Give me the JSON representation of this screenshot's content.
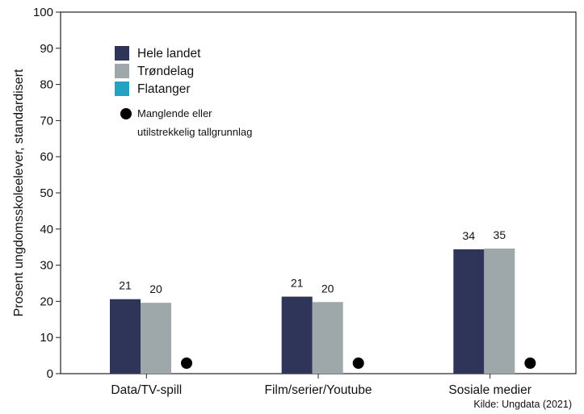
{
  "chart_data": {
    "type": "bar",
    "ylabel": "Prosent ungdomsskoleelever, standardisert",
    "ylim": [
      0,
      100
    ],
    "yticks": [
      0,
      10,
      20,
      30,
      40,
      50,
      60,
      70,
      80,
      90,
      100
    ],
    "grid": false,
    "legend_position": "top-left",
    "categories": [
      "Data/TV-spill",
      "Film/serier/Youtube",
      "Sosiale medier"
    ],
    "series": [
      {
        "name": "Hele landet",
        "color": "#2e3559",
        "values": [
          20.6,
          21.3,
          34.4
        ],
        "labels": [
          "21",
          "21",
          "34"
        ]
      },
      {
        "name": "Trøndelag",
        "color": "#9ea8ab",
        "values": [
          19.6,
          19.8,
          34.6
        ],
        "labels": [
          "20",
          "20",
          "35"
        ]
      },
      {
        "name": "Flatanger",
        "color": "#23a3c2",
        "values": [
          null,
          null,
          null
        ],
        "labels": [
          "",
          "",
          ""
        ]
      }
    ],
    "missing_marker_label": "Manglende eller utilstrekkelig tallgrunnlag",
    "missing_marker_label_lines": [
      "Manglende eller",
      "utilstrekkelig tallgrunnlag"
    ],
    "source": "Kilde: Ungdata (2021)"
  }
}
